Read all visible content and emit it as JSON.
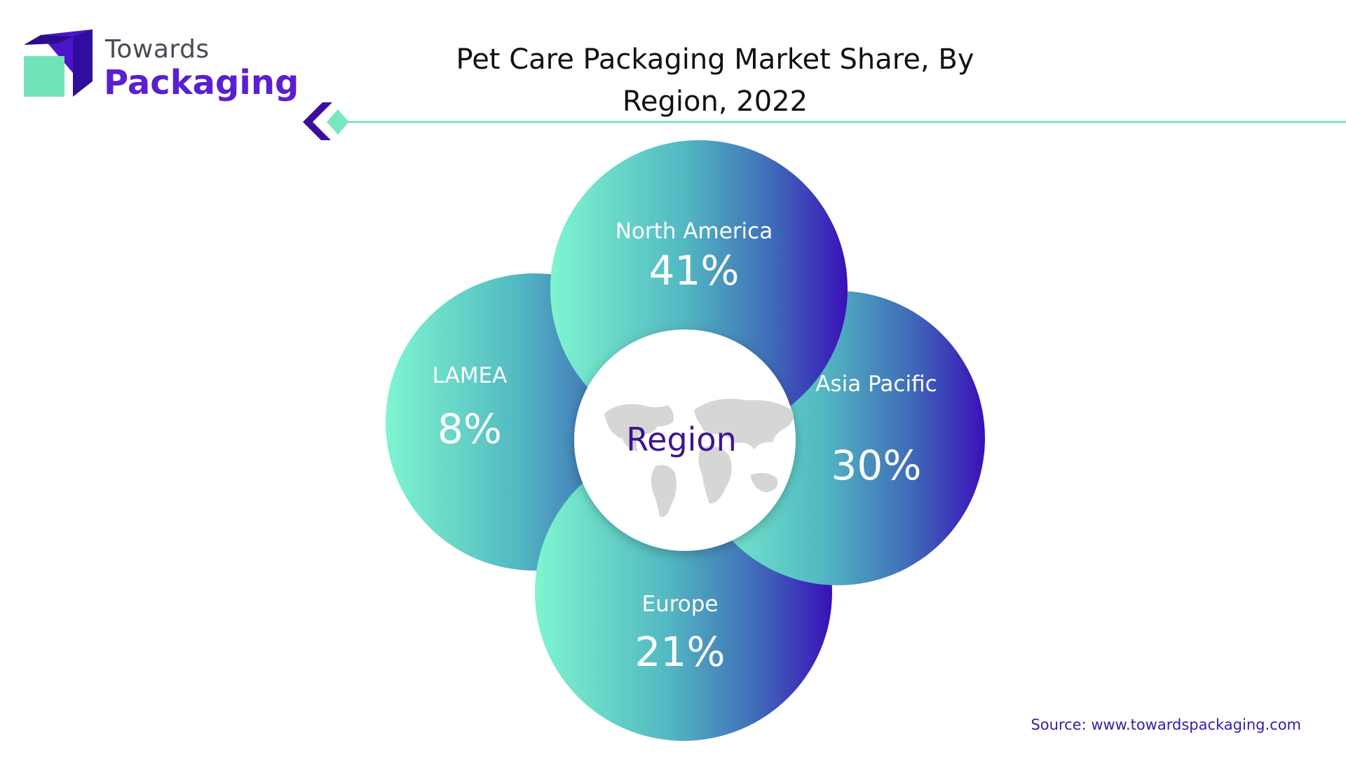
{
  "header": {
    "logo_line1": "Towards",
    "logo_line2": "Packaging"
  },
  "chart_data": {
    "type": "pie",
    "title": "Pet Care Packaging Market Share, By Region, 2022",
    "center_label": "Region",
    "unit": "%",
    "categories": [
      "North America",
      "Asia Pacific",
      "Europe",
      "LAMEA"
    ],
    "values": [
      41,
      30,
      21,
      8
    ],
    "value_labels": [
      "41%",
      "30%",
      "21%",
      "8%"
    ],
    "colors": {
      "gradient_start": "#7ff5cf",
      "gradient_mid": "#4aa7c0",
      "gradient_end": "#3a1ab8",
      "center_text": "#3f1490",
      "map_fill": "#d5d5d5"
    }
  },
  "footer": {
    "source": "Source: www.towardspackaging.com"
  }
}
